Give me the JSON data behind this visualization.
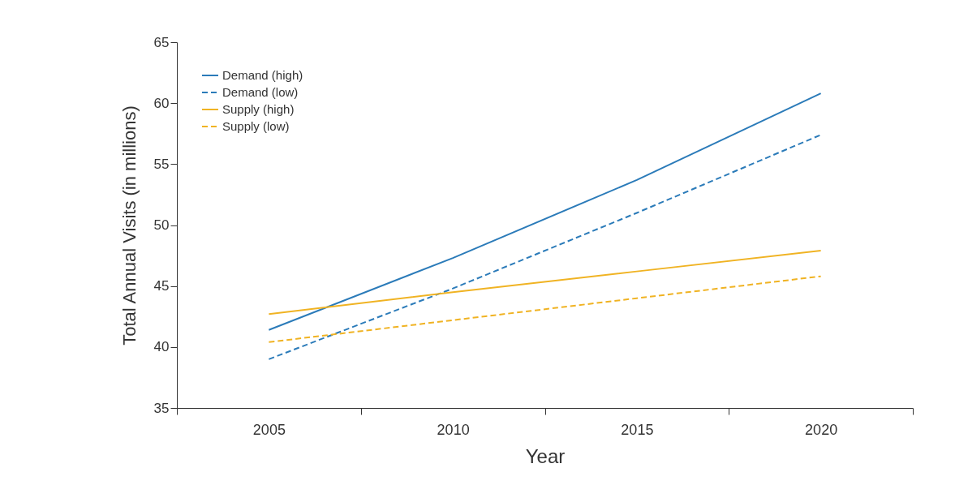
{
  "chart_data": {
    "type": "line",
    "xlabel": "Year",
    "ylabel": "Total Annual Visits (in millions)",
    "categories": [
      "2005",
      "2010",
      "2015",
      "2020"
    ],
    "ylim": [
      35,
      65
    ],
    "yticks": [
      35,
      40,
      45,
      50,
      55,
      60,
      65
    ],
    "grid": false,
    "legend": "top left",
    "marker": "none",
    "series": [
      {
        "name": "Demand (high)",
        "color": "#2b7bb9",
        "line_style": "solid",
        "values": [
          41.4,
          47.3,
          53.7,
          60.8
        ]
      },
      {
        "name": "Demand (low)",
        "color": "#2b7bb9",
        "line_style": "dashed",
        "values": [
          39,
          44.8,
          51,
          57.4
        ]
      },
      {
        "name": "Supply (high)",
        "color": "#f0b323",
        "line_style": "solid",
        "values": [
          42.7,
          44.5,
          46.2,
          47.9
        ]
      },
      {
        "name": "Supply (low)",
        "color": "#f0b323",
        "line_style": "dashed",
        "values": [
          40.4,
          42.2,
          44,
          45.8
        ]
      }
    ]
  }
}
